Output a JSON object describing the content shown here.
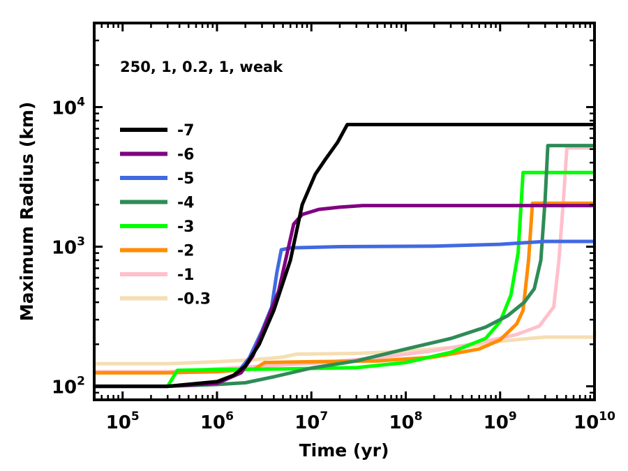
{
  "chart_data": {
    "type": "line",
    "title": "",
    "annotation": "250, 1, 0.2, 1, weak",
    "xlabel": "Time (yr)",
    "ylabel": "Maximum Radius (km)",
    "xscale": "log",
    "yscale": "log",
    "xlim": [
      50000,
      10000000000
    ],
    "ylim": [
      80,
      40000
    ],
    "xticks": [
      {
        "base": "10",
        "exp": "5",
        "value": 100000
      },
      {
        "base": "10",
        "exp": "6",
        "value": 1000000
      },
      {
        "base": "10",
        "exp": "7",
        "value": 10000000
      },
      {
        "base": "10",
        "exp": "8",
        "value": 100000000
      },
      {
        "base": "10",
        "exp": "9",
        "value": 1000000000
      },
      {
        "base": "10",
        "exp": "10",
        "value": 10000000000
      }
    ],
    "yticks": [
      {
        "base": "10",
        "exp": "2",
        "value": 100
      },
      {
        "base": "10",
        "exp": "3",
        "value": 1000
      },
      {
        "base": "10",
        "exp": "4",
        "value": 10000
      }
    ],
    "legend_position": "left",
    "series": [
      {
        "name": "-7",
        "color": "#000000",
        "points": [
          [
            50000,
            100
          ],
          [
            300000,
            100
          ],
          [
            1000000,
            108
          ],
          [
            1500000,
            120
          ],
          [
            2000000,
            140
          ],
          [
            2800000,
            200
          ],
          [
            4000000,
            350
          ],
          [
            6000000,
            800
          ],
          [
            8000000,
            2000
          ],
          [
            11000000,
            3300
          ],
          [
            14000000,
            4200
          ],
          [
            19000000,
            5600
          ],
          [
            24000000,
            7500
          ],
          [
            10000000000,
            7500
          ]
        ]
      },
      {
        "name": "-6",
        "color": "#800080",
        "points": [
          [
            50000,
            100
          ],
          [
            300000,
            100
          ],
          [
            1000000,
            105
          ],
          [
            1800000,
            125
          ],
          [
            2400000,
            165
          ],
          [
            3000000,
            240
          ],
          [
            4500000,
            480
          ],
          [
            6500000,
            1450
          ],
          [
            8000000,
            1700
          ],
          [
            12000000,
            1850
          ],
          [
            20000000,
            1920
          ],
          [
            35000000,
            1970
          ],
          [
            10000000000,
            1970
          ]
        ]
      },
      {
        "name": "-5",
        "color": "#4169E1",
        "points": [
          [
            50000,
            100
          ],
          [
            300000,
            100
          ],
          [
            1000000,
            107
          ],
          [
            1600000,
            122
          ],
          [
            2200000,
            160
          ],
          [
            3000000,
            250
          ],
          [
            3800000,
            370
          ],
          [
            4300000,
            650
          ],
          [
            4800000,
            950
          ],
          [
            6000000,
            980
          ],
          [
            20000000,
            1000
          ],
          [
            200000000,
            1010
          ],
          [
            1000000000,
            1040
          ],
          [
            3000000000,
            1090
          ],
          [
            10000000000,
            1090
          ]
        ]
      },
      {
        "name": "-4",
        "color": "#2E8B57",
        "points": [
          [
            50000,
            100
          ],
          [
            300000,
            100
          ],
          [
            1000000,
            103
          ],
          [
            2000000,
            106
          ],
          [
            4000000,
            117
          ],
          [
            10000000,
            135
          ],
          [
            30000000,
            152
          ],
          [
            100000000,
            185
          ],
          [
            300000000,
            220
          ],
          [
            700000000,
            265
          ],
          [
            1200000000,
            320
          ],
          [
            1800000000,
            400
          ],
          [
            2300000000,
            500
          ],
          [
            2700000000,
            800
          ],
          [
            3000000000,
            2200
          ],
          [
            3200000000,
            5300
          ],
          [
            10000000000,
            5300
          ]
        ]
      },
      {
        "name": "-3",
        "color": "#00FF00",
        "points": [
          [
            50000,
            100
          ],
          [
            300000,
            100
          ],
          [
            380000,
            130
          ],
          [
            1000000,
            132
          ],
          [
            5000000,
            133
          ],
          [
            30000000,
            136
          ],
          [
            100000000,
            148
          ],
          [
            300000000,
            175
          ],
          [
            700000000,
            220
          ],
          [
            1000000000,
            290
          ],
          [
            1300000000,
            450
          ],
          [
            1550000000,
            900
          ],
          [
            1750000000,
            3400
          ],
          [
            10000000000,
            3400
          ]
        ]
      },
      {
        "name": "-2",
        "color": "#FF8C00",
        "points": [
          [
            50000,
            125
          ],
          [
            300000,
            125
          ],
          [
            1000000,
            127
          ],
          [
            2500000,
            133
          ],
          [
            3200000,
            148
          ],
          [
            10000000,
            150
          ],
          [
            50000000,
            152
          ],
          [
            200000000,
            162
          ],
          [
            600000000,
            185
          ],
          [
            1000000000,
            215
          ],
          [
            1500000000,
            280
          ],
          [
            1750000000,
            350
          ],
          [
            2000000000,
            800
          ],
          [
            2200000000,
            2050
          ],
          [
            10000000000,
            2050
          ]
        ]
      },
      {
        "name": "-1",
        "color": "#FFC0CB",
        "points": [
          [
            50000,
            127
          ],
          [
            300000,
            127
          ],
          [
            1000000,
            133
          ],
          [
            4000000,
            141
          ],
          [
            10000000,
            146
          ],
          [
            50000000,
            160
          ],
          [
            200000000,
            180
          ],
          [
            600000000,
            205
          ],
          [
            1500000000,
            235
          ],
          [
            2600000000,
            270
          ],
          [
            3700000000,
            370
          ],
          [
            4200000000,
            800
          ],
          [
            4700000000,
            2200
          ],
          [
            5100000000,
            5100
          ],
          [
            10000000000,
            5100
          ]
        ]
      },
      {
        "name": "-0.3",
        "color": "#F5DEB3",
        "points": [
          [
            50000,
            145
          ],
          [
            300000,
            145
          ],
          [
            1000000,
            150
          ],
          [
            2500000,
            155
          ],
          [
            5000000,
            162
          ],
          [
            7000000,
            170
          ],
          [
            30000000,
            172
          ],
          [
            100000000,
            178
          ],
          [
            500000000,
            195
          ],
          [
            1000000000,
            210
          ],
          [
            2000000000,
            220
          ],
          [
            3000000000,
            225
          ],
          [
            10000000000,
            225
          ],
          [
            10000000000,
            250
          ]
        ]
      }
    ]
  }
}
